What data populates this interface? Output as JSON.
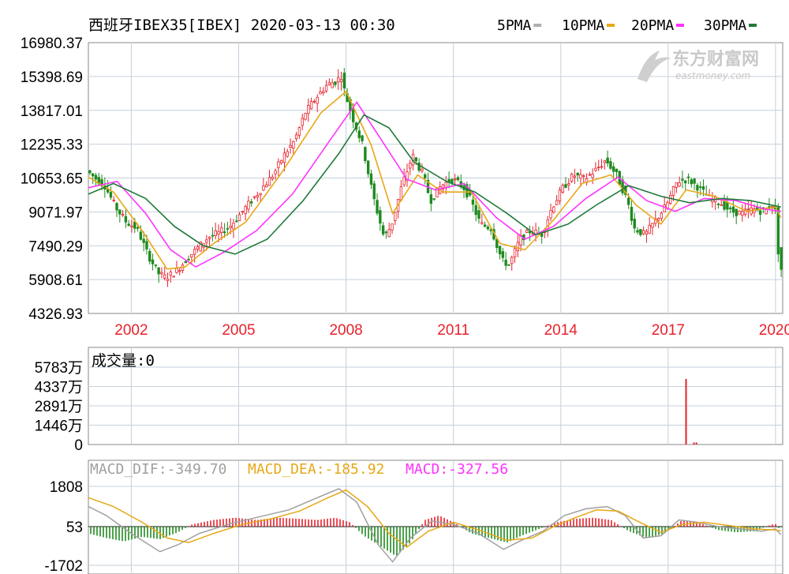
{
  "header": {
    "title": "西班牙IBEX35[IBEX] 2020-03-13 00:30",
    "legend": [
      {
        "label": "5PMA",
        "color": "#b0b0b0"
      },
      {
        "label": "10PMA",
        "color": "#e6a817"
      },
      {
        "label": "20PMA",
        "color": "#ff33ff"
      },
      {
        "label": "30PMA",
        "color": "#1f7a3a"
      }
    ]
  },
  "watermark": {
    "name": "东方财富网",
    "domain": "eastmoney.com"
  },
  "colors": {
    "up": "#e8212b",
    "down": "#1f8a1f",
    "date": "#e8212b",
    "grid": "#c6d0dc",
    "frame": "#8a8a8a"
  },
  "chart_data": [
    {
      "id": "price",
      "type": "candlestick",
      "ylim": [
        4326.93,
        16980.37
      ],
      "yticks": [
        "16980.37",
        "15398.69",
        "13817.01",
        "12235.33",
        "10653.65",
        "9071.97",
        "7490.29",
        "5908.61",
        "4326.93"
      ],
      "xrange": [
        2000.8,
        2020.2
      ],
      "xticks": [
        {
          "year": 2002,
          "label": "2002"
        },
        {
          "year": 2005,
          "label": "2005"
        },
        {
          "year": 2008,
          "label": "2008"
        },
        {
          "year": 2011,
          "label": "2011"
        },
        {
          "year": 2014,
          "label": "2014"
        },
        {
          "year": 2017,
          "label": "2017"
        },
        {
          "year": 2020,
          "label": "2020"
        }
      ],
      "close_path": [
        [
          2000.8,
          11000
        ],
        [
          2001.0,
          10700
        ],
        [
          2001.3,
          10300
        ],
        [
          2001.6,
          9300
        ],
        [
          2001.9,
          8600
        ],
        [
          2002.2,
          8300
        ],
        [
          2002.5,
          7100
        ],
        [
          2002.8,
          6200
        ],
        [
          2003.0,
          6000
        ],
        [
          2003.3,
          6300
        ],
        [
          2003.6,
          6900
        ],
        [
          2003.9,
          7400
        ],
        [
          2004.2,
          7900
        ],
        [
          2004.5,
          8100
        ],
        [
          2004.8,
          8400
        ],
        [
          2005.1,
          9000
        ],
        [
          2005.4,
          9600
        ],
        [
          2005.7,
          10200
        ],
        [
          2006.0,
          10800
        ],
        [
          2006.3,
          11700
        ],
        [
          2006.6,
          12400
        ],
        [
          2006.9,
          13700
        ],
        [
          2007.2,
          14400
        ],
        [
          2007.5,
          15000
        ],
        [
          2007.8,
          15200
        ],
        [
          2007.9,
          15500
        ],
        [
          2008.0,
          14700
        ],
        [
          2008.2,
          13600
        ],
        [
          2008.5,
          12200
        ],
        [
          2008.8,
          9800
        ],
        [
          2009.1,
          7900
        ],
        [
          2009.3,
          8400
        ],
        [
          2009.6,
          10300
        ],
        [
          2009.9,
          11700
        ],
        [
          2010.2,
          10800
        ],
        [
          2010.4,
          9600
        ],
        [
          2010.7,
          10300
        ],
        [
          2011.0,
          10600
        ],
        [
          2011.3,
          10300
        ],
        [
          2011.5,
          9700
        ],
        [
          2011.8,
          8500
        ],
        [
          2012.1,
          8300
        ],
        [
          2012.4,
          6800
        ],
        [
          2012.6,
          6600
        ],
        [
          2012.9,
          7800
        ],
        [
          2013.2,
          8200
        ],
        [
          2013.5,
          8000
        ],
        [
          2013.8,
          9300
        ],
        [
          2014.1,
          10200
        ],
        [
          2014.4,
          10800
        ],
        [
          2014.7,
          10600
        ],
        [
          2015.0,
          11000
        ],
        [
          2015.3,
          11500
        ],
        [
          2015.6,
          10800
        ],
        [
          2015.9,
          9600
        ],
        [
          2016.1,
          8300
        ],
        [
          2016.4,
          8000
        ],
        [
          2016.7,
          8700
        ],
        [
          2017.0,
          9400
        ],
        [
          2017.3,
          10500
        ],
        [
          2017.6,
          10600
        ],
        [
          2017.9,
          10200
        ],
        [
          2018.2,
          9700
        ],
        [
          2018.5,
          9500
        ],
        [
          2018.8,
          9100
        ],
        [
          2019.1,
          9000
        ],
        [
          2019.4,
          9200
        ],
        [
          2019.7,
          9100
        ],
        [
          2020.0,
          9500
        ],
        [
          2020.05,
          8900
        ],
        [
          2020.15,
          6400
        ]
      ],
      "ma": [
        {
          "name": "10PMA",
          "color": "#e6a817",
          "points": [
            [
              2000.8,
              10700
            ],
            [
              2001.5,
              10000
            ],
            [
              2002.3,
              8200
            ],
            [
              2003.0,
              6400
            ],
            [
              2003.5,
              6500
            ],
            [
              2004.3,
              7600
            ],
            [
              2005.2,
              8600
            ],
            [
              2006.2,
              10900
            ],
            [
              2007.3,
              13700
            ],
            [
              2008.0,
              14700
            ],
            [
              2008.7,
              12200
            ],
            [
              2009.3,
              9000
            ],
            [
              2010.0,
              10800
            ],
            [
              2010.7,
              10000
            ],
            [
              2011.5,
              10000
            ],
            [
              2012.3,
              7600
            ],
            [
              2013.0,
              7300
            ],
            [
              2013.8,
              8700
            ],
            [
              2014.6,
              10400
            ],
            [
              2015.4,
              10800
            ],
            [
              2016.1,
              9400
            ],
            [
              2016.8,
              8500
            ],
            [
              2017.5,
              10100
            ],
            [
              2018.3,
              9800
            ],
            [
              2019.2,
              9100
            ],
            [
              2020.0,
              9300
            ],
            [
              2020.15,
              8800
            ]
          ]
        },
        {
          "name": "20PMA",
          "color": "#ff33ff",
          "points": [
            [
              2000.8,
              10200
            ],
            [
              2001.6,
              10500
            ],
            [
              2002.4,
              9000
            ],
            [
              2003.1,
              7300
            ],
            [
              2003.8,
              6500
            ],
            [
              2004.6,
              7200
            ],
            [
              2005.5,
              8200
            ],
            [
              2006.5,
              9900
            ],
            [
              2007.5,
              12300
            ],
            [
              2008.3,
              14200
            ],
            [
              2009.0,
              12400
            ],
            [
              2009.7,
              10600
            ],
            [
              2010.5,
              10100
            ],
            [
              2011.3,
              10400
            ],
            [
              2012.2,
              8800
            ],
            [
              2013.0,
              7800
            ],
            [
              2013.8,
              8400
            ],
            [
              2014.7,
              9700
            ],
            [
              2015.6,
              10700
            ],
            [
              2016.4,
              9600
            ],
            [
              2017.2,
              9100
            ],
            [
              2018.0,
              9700
            ],
            [
              2018.9,
              9600
            ],
            [
              2019.7,
              9200
            ],
            [
              2020.15,
              9100
            ]
          ]
        },
        {
          "name": "30PMA",
          "color": "#1f7a3a",
          "points": [
            [
              2000.8,
              9900
            ],
            [
              2001.5,
              10400
            ],
            [
              2002.4,
              9700
            ],
            [
              2003.2,
              8400
            ],
            [
              2004.0,
              7500
            ],
            [
              2004.9,
              7100
            ],
            [
              2005.8,
              7800
            ],
            [
              2006.8,
              9600
            ],
            [
              2007.8,
              11800
            ],
            [
              2008.5,
              13600
            ],
            [
              2009.2,
              13000
            ],
            [
              2009.9,
              11400
            ],
            [
              2010.8,
              10500
            ],
            [
              2011.6,
              10000
            ],
            [
              2012.5,
              9000
            ],
            [
              2013.3,
              8000
            ],
            [
              2014.2,
              8500
            ],
            [
              2015.0,
              9400
            ],
            [
              2015.9,
              10300
            ],
            [
              2016.8,
              9800
            ],
            [
              2017.6,
              9500
            ],
            [
              2018.5,
              9700
            ],
            [
              2019.3,
              9600
            ],
            [
              2020.15,
              9300
            ]
          ]
        }
      ]
    },
    {
      "id": "volume",
      "type": "bar",
      "label": "成交量:0",
      "ylim": [
        0,
        5783
      ],
      "yticks": [
        "5783万",
        "4337万",
        "2891万",
        "1446万",
        "0"
      ],
      "bars": [
        {
          "x": 2017.5,
          "value": 4900
        },
        {
          "x": 2017.72,
          "value": 150
        },
        {
          "x": 2017.79,
          "value": 150
        }
      ]
    },
    {
      "id": "macd",
      "type": "macd",
      "labels": {
        "dif": "MACD_DIF:-349.70",
        "dea": "MACD_DEA:-185.92",
        "macd": "MACD:-327.56"
      },
      "label_colors": {
        "dif": "#a0a0a0",
        "dea": "#e6a817",
        "macd": "#ff33ff"
      },
      "ylim": [
        -1702,
        1808
      ],
      "yticks": [
        "1808",
        "53",
        "-1702"
      ],
      "dif": [
        [
          2000.8,
          900
        ],
        [
          2001.3,
          500
        ],
        [
          2002.0,
          -300
        ],
        [
          2002.8,
          -1100
        ],
        [
          2003.3,
          -800
        ],
        [
          2003.9,
          -300
        ],
        [
          2004.8,
          150
        ],
        [
          2005.6,
          450
        ],
        [
          2006.4,
          750
        ],
        [
          2007.2,
          1300
        ],
        [
          2007.8,
          1700
        ],
        [
          2008.3,
          1100
        ],
        [
          2008.9,
          -800
        ],
        [
          2009.3,
          -1550
        ],
        [
          2009.8,
          -500
        ],
        [
          2010.4,
          250
        ],
        [
          2011.0,
          100
        ],
        [
          2011.7,
          -300
        ],
        [
          2012.4,
          -1000
        ],
        [
          2012.9,
          -600
        ],
        [
          2013.5,
          -200
        ],
        [
          2014.1,
          500
        ],
        [
          2014.7,
          800
        ],
        [
          2015.3,
          900
        ],
        [
          2015.8,
          500
        ],
        [
          2016.3,
          -500
        ],
        [
          2016.8,
          -400
        ],
        [
          2017.3,
          300
        ],
        [
          2017.8,
          200
        ],
        [
          2018.4,
          0
        ],
        [
          2019.0,
          -100
        ],
        [
          2019.6,
          -200
        ],
        [
          2020.0,
          -100
        ],
        [
          2020.15,
          -350
        ]
      ],
      "dea": [
        [
          2000.8,
          1300
        ],
        [
          2001.5,
          900
        ],
        [
          2002.3,
          200
        ],
        [
          2003.0,
          -500
        ],
        [
          2003.6,
          -700
        ],
        [
          2004.3,
          -300
        ],
        [
          2005.1,
          100
        ],
        [
          2005.9,
          350
        ],
        [
          2006.7,
          700
        ],
        [
          2007.5,
          1300
        ],
        [
          2008.0,
          1650
        ],
        [
          2008.6,
          900
        ],
        [
          2009.2,
          -300
        ],
        [
          2009.7,
          -900
        ],
        [
          2010.3,
          -200
        ],
        [
          2011.0,
          200
        ],
        [
          2011.8,
          -200
        ],
        [
          2012.5,
          -600
        ],
        [
          2013.2,
          -500
        ],
        [
          2013.8,
          0
        ],
        [
          2014.4,
          400
        ],
        [
          2015.0,
          750
        ],
        [
          2015.6,
          700
        ],
        [
          2016.2,
          200
        ],
        [
          2016.8,
          -250
        ],
        [
          2017.4,
          100
        ],
        [
          2018.0,
          200
        ],
        [
          2018.7,
          50
        ],
        [
          2019.4,
          -100
        ],
        [
          2020.0,
          -150
        ],
        [
          2020.15,
          -186
        ]
      ],
      "hist": [
        [
          2000.8,
          -300
        ],
        [
          2001.3,
          -500
        ],
        [
          2001.8,
          -650
        ],
        [
          2002.3,
          -450
        ],
        [
          2002.8,
          -550
        ],
        [
          2003.3,
          -250
        ],
        [
          2003.7,
          100
        ],
        [
          2004.3,
          300
        ],
        [
          2004.9,
          400
        ],
        [
          2005.5,
          300
        ],
        [
          2006.1,
          400
        ],
        [
          2006.7,
          350
        ],
        [
          2007.2,
          300
        ],
        [
          2007.7,
          400
        ],
        [
          2008.1,
          200
        ],
        [
          2008.5,
          -400
        ],
        [
          2009.0,
          -900
        ],
        [
          2009.4,
          -1300
        ],
        [
          2009.8,
          -700
        ],
        [
          2010.2,
          300
        ],
        [
          2010.6,
          500
        ],
        [
          2011.0,
          200
        ],
        [
          2011.5,
          -300
        ],
        [
          2012.0,
          -500
        ],
        [
          2012.5,
          -700
        ],
        [
          2012.9,
          -400
        ],
        [
          2013.4,
          -100
        ],
        [
          2013.9,
          200
        ],
        [
          2014.4,
          350
        ],
        [
          2014.9,
          400
        ],
        [
          2015.4,
          300
        ],
        [
          2015.9,
          -200
        ],
        [
          2016.4,
          -500
        ],
        [
          2016.9,
          -300
        ],
        [
          2017.4,
          300
        ],
        [
          2017.9,
          150
        ],
        [
          2018.4,
          -150
        ],
        [
          2018.9,
          -250
        ],
        [
          2019.4,
          -200
        ],
        [
          2019.9,
          100
        ],
        [
          2020.05,
          120
        ],
        [
          2020.15,
          -330
        ]
      ]
    }
  ]
}
